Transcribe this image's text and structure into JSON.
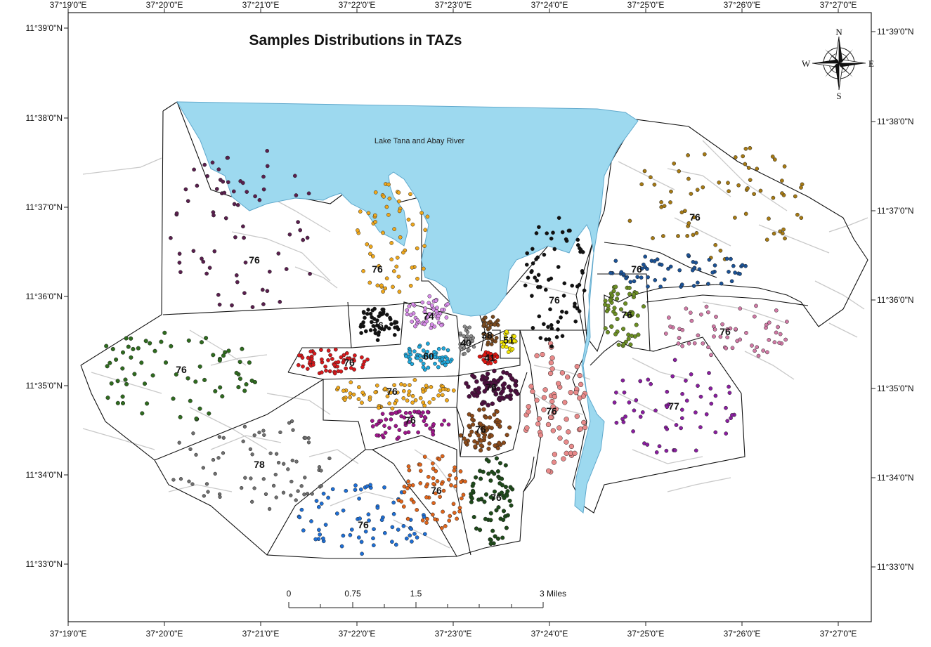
{
  "title": "Samples Distributions in TAZs",
  "water_label": "Lake Tana and Abay River",
  "colors": {
    "water": "#9dd9ef",
    "road": "#c9c9c9",
    "boundary": "#111111"
  },
  "axes": {
    "top": [
      "37°19'0\"E",
      "37°20'0\"E",
      "37°21'0\"E",
      "37°22'0\"E",
      "37°23'0\"E",
      "37°24'0\"E",
      "37°25'0\"E",
      "37°26'0\"E",
      "37°27'0\"E"
    ],
    "bottom": [
      "37°19'0\"E",
      "37°20'0\"E",
      "37°21'0\"E",
      "37°22'0\"E",
      "37°23'0\"E",
      "37°24'0\"E",
      "37°25'0\"E",
      "37°26'0\"E",
      "37°27'0\"E"
    ],
    "left": [
      "11°39'0\"N",
      "11°38'0\"N",
      "11°37'0\"N",
      "11°36'0\"N",
      "11°35'0\"N",
      "11°34'0\"N",
      "11°33'0\"N"
    ],
    "right": [
      "11°39'0\"N",
      "11°38'0\"N",
      "11°37'0\"N",
      "11°36'0\"N",
      "11°35'0\"N",
      "11°34'0\"N",
      "11°33'0\"N"
    ]
  },
  "scale_bar": {
    "labels": [
      "0",
      "0.75",
      "1.5",
      "3 Miles"
    ]
  },
  "compass": {
    "n": "N",
    "s": "S",
    "e": "E",
    "w": "W"
  },
  "zones": [
    {
      "id": "nw",
      "label": "76",
      "color": "#5a1f4e"
    },
    {
      "id": "north-central",
      "label": "76",
      "color": "#f0a81c"
    },
    {
      "id": "black-small",
      "label": "76",
      "color": "#111111"
    },
    {
      "id": "violet",
      "label": "74",
      "color": "#d78ce8"
    },
    {
      "id": "grey-small",
      "label": "40",
      "color": "#8c8c8c"
    },
    {
      "id": "brown-small",
      "label": "38",
      "color": "#7a4a1e"
    },
    {
      "id": "yellow",
      "label": "51",
      "color": "#f4e600"
    },
    {
      "id": "red-small",
      "label": "41",
      "color": "#e3140f"
    },
    {
      "id": "cyan",
      "label": "60",
      "color": "#1fa8dc"
    },
    {
      "id": "red-west",
      "label": "76",
      "color": "#d7191c"
    },
    {
      "id": "west-green",
      "label": "76",
      "color": "#2f6b1f"
    },
    {
      "id": "orange-mid",
      "label": "76",
      "color": "#f0a81c"
    },
    {
      "id": "purple-dark",
      "label": "76",
      "color": "#4d0f3f"
    },
    {
      "id": "magenta",
      "label": "76",
      "color": "#a0168c"
    },
    {
      "id": "brown-mid",
      "label": "76",
      "color": "#8a4a1a"
    },
    {
      "id": "pink-salmon",
      "label": "76",
      "color": "#e98a8a"
    },
    {
      "id": "black-north",
      "label": "76",
      "color": "#111111"
    },
    {
      "id": "sw-grey",
      "label": "78",
      "color": "#6f6f6f"
    },
    {
      "id": "blue-south",
      "label": "76",
      "color": "#1e6fd6"
    },
    {
      "id": "orange-south",
      "label": "76",
      "color": "#e0651b"
    },
    {
      "id": "dark-green-south",
      "label": "76",
      "color": "#1e4a1a"
    },
    {
      "id": "ne-gold",
      "label": "76",
      "color": "#a67a14"
    },
    {
      "id": "navy",
      "label": "76",
      "color": "#1b5296"
    },
    {
      "id": "olive",
      "label": "76",
      "color": "#6b8e23"
    },
    {
      "id": "rose",
      "label": "76",
      "color": "#d17aa6"
    },
    {
      "id": "purple-east",
      "label": "77",
      "color": "#8a1ea0"
    }
  ]
}
